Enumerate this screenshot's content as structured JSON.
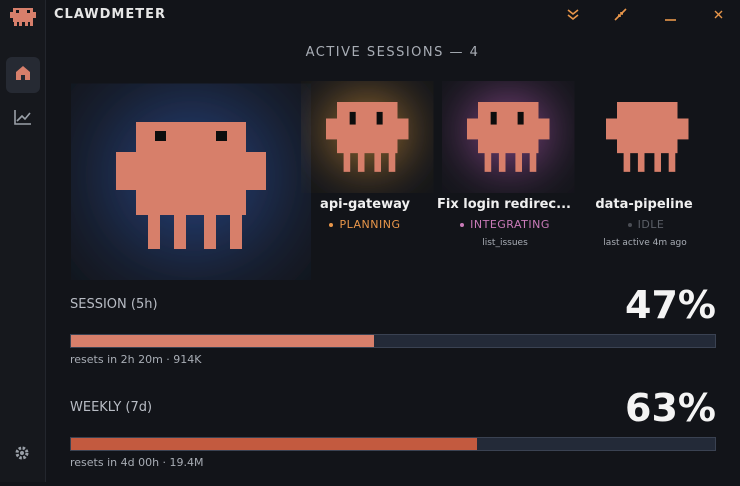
{
  "app": {
    "title": "CLAWDMETER"
  },
  "header": {
    "title": "ACTIVE SESSIONS — 4"
  },
  "sessions": [
    {
      "name": "api-gateway",
      "status": "PLANNING"
    },
    {
      "name": "Fix login redirec...",
      "status": "INTEGRATING",
      "detail": "list_issues"
    },
    {
      "name": "data-pipeline",
      "status": "IDLE",
      "detail": "last active 4m ago"
    }
  ],
  "usage": [
    {
      "label": "SESSION (5h)",
      "value": 47,
      "value_label": "47%",
      "note": "resets in 2h 20m · 914K",
      "xlim": [
        0,
        100
      ]
    },
    {
      "label": "WEEKLY (7d)",
      "value": 63,
      "value_label": "63%",
      "note": "resets in 4d 00h · 19.4M",
      "xlim": [
        0,
        100
      ]
    }
  ]
}
